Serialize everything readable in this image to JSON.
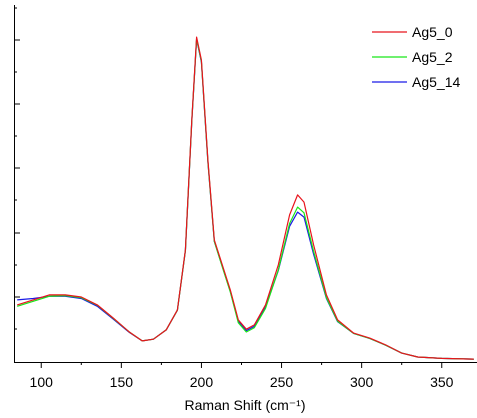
{
  "chart_data": {
    "type": "line",
    "x_label": "Raman Shift (cm⁻¹)",
    "x": [
      85,
      95,
      105,
      115,
      125,
      135,
      145,
      155,
      163,
      170,
      178,
      185,
      190,
      194,
      197,
      200,
      204,
      208,
      213,
      218,
      223,
      228,
      233,
      240,
      248,
      255,
      260,
      264,
      270,
      278,
      285,
      295,
      305,
      315,
      325,
      335,
      350,
      370
    ],
    "series": [
      {
        "name": "Ag5_0",
        "color": "#e8141c",
        "values": [
          16.0,
          17.4,
          18.8,
          18.8,
          18.2,
          16.0,
          12.3,
          8.4,
          5.9,
          6.4,
          9.0,
          14.6,
          31.4,
          67.8,
          91.0,
          84.6,
          56.6,
          34.2,
          27.2,
          20.2,
          11.8,
          9.2,
          10.4,
          16.0,
          27.2,
          41.2,
          46.8,
          44.8,
          32.8,
          18.8,
          11.8,
          8.1,
          6.7,
          4.8,
          2.5,
          1.4,
          1.0,
          0.8
        ]
      },
      {
        "name": "Ag5_2",
        "color": "#19e619",
        "values": [
          15.6,
          17.0,
          18.4,
          18.6,
          18.0,
          15.9,
          12.2,
          8.4,
          5.9,
          6.4,
          9.0,
          14.5,
          31.2,
          67.6,
          90.6,
          84.2,
          56.2,
          33.8,
          26.6,
          19.6,
          11.0,
          8.4,
          9.6,
          15.0,
          25.8,
          38.8,
          43.4,
          41.8,
          31.0,
          18.0,
          11.4,
          8.0,
          6.6,
          4.7,
          2.5,
          1.4,
          1.0,
          0.8
        ]
      },
      {
        "name": "Ag5_14",
        "color": "#1a1ae6",
        "values": [
          17.4,
          17.8,
          18.4,
          18.4,
          17.8,
          15.6,
          12.0,
          8.3,
          5.9,
          6.4,
          9.0,
          14.5,
          31.2,
          67.4,
          90.4,
          84.0,
          56.0,
          33.8,
          26.8,
          19.8,
          11.4,
          8.8,
          10.0,
          15.4,
          25.6,
          38.0,
          42.0,
          40.6,
          30.2,
          17.8,
          11.3,
          8.0,
          6.6,
          4.7,
          2.5,
          1.4,
          1.0,
          0.8
        ]
      }
    ],
    "xlim": [
      83,
      372
    ],
    "xticks": [
      100,
      150,
      200,
      250,
      300,
      350
    ],
    "ylim": [
      0,
      100
    ],
    "legend": "upper right"
  }
}
